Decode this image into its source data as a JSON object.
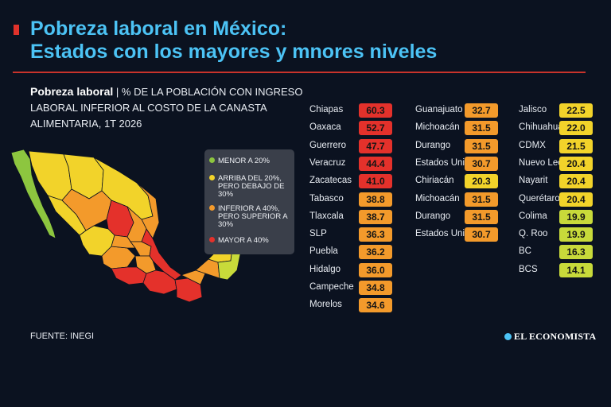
{
  "header": {
    "title_line1": "Pobreza laboral en México:",
    "title_line2": "Estados con los mayores y mnores niveles"
  },
  "subtitle": {
    "bold": "Pobreza laboral",
    "separator": "|",
    "line1_rest": "% DE LA POBLACIÓN CON INGRESO",
    "line2": "LABORAL INFERIOR AL COSTO DE LA CANASTA",
    "line3": "ALIMENTARIA, 1T 2026"
  },
  "legend": {
    "items": [
      {
        "label": "MENOR A 20%",
        "color": "#8dc63f"
      },
      {
        "label": "ARRIBA DEL 20%, PERO DEBAJO DE 30%",
        "color": "#f2d32a"
      },
      {
        "label": "INFERIOR A 40%, PERO SUPERIOR A 30%",
        "color": "#f39a2b"
      },
      {
        "label": "MAYOR A 40%",
        "color": "#e4312b"
      }
    ]
  },
  "colors": {
    "high": "#e4312b",
    "mid_high": "#f39a2b",
    "mid_low": "#f2d32a",
    "low": "#c8da3a",
    "title": "#4cc3f5",
    "background": "#0b1220"
  },
  "chart_data": {
    "type": "table",
    "unit": "% de la población",
    "columns": [
      [
        {
          "state": "Chiapas",
          "value": "60.3"
        },
        {
          "state": "Oaxaca",
          "value": "52.7"
        },
        {
          "state": "Guerrero",
          "value": "47.7"
        },
        {
          "state": "Veracruz",
          "value": "44.4"
        },
        {
          "state": "Zacatecas",
          "value": "41.0"
        },
        {
          "state": "Tabasco",
          "value": "38.8"
        },
        {
          "state": "Tlaxcala",
          "value": "38.7"
        },
        {
          "state": "SLP",
          "value": "36.3"
        },
        {
          "state": "Puebla",
          "value": "36.2"
        },
        {
          "state": "Hidalgo",
          "value": "36.0"
        },
        {
          "state": "Campeche",
          "value": "34.8"
        },
        {
          "state": "Morelos",
          "value": "34.6"
        }
      ],
      [
        {
          "state": "Guanajuato",
          "value": "32.7"
        },
        {
          "state": "Michoacán",
          "value": "31.5"
        },
        {
          "state": "Durango",
          "value": "31.5"
        },
        {
          "state": "Estados Unidos",
          "value": "30.7"
        },
        {
          "state": "Chiriacán",
          "value": "20.3"
        },
        {
          "state": "Michoacán",
          "value": "31.5"
        },
        {
          "state": "Durango",
          "value": "31.5"
        },
        {
          "state": "Estados Unidos",
          "value": "30.7"
        }
      ],
      [
        {
          "state": "Jalisco",
          "value": "22.5"
        },
        {
          "state": "Chihuahua",
          "value": "22.0"
        },
        {
          "state": "CDMX",
          "value": "21.5"
        },
        {
          "state": "Nuevo León",
          "value": "20.4"
        },
        {
          "state": "Nayarit",
          "value": "20.4"
        },
        {
          "state": "Querétaro",
          "value": "20.4"
        },
        {
          "state": "Colima",
          "value": "19.9"
        },
        {
          "state": "Q. Roo",
          "value": "19.9"
        },
        {
          "state": "BC",
          "value": "16.3"
        },
        {
          "state": "BCS",
          "value": "14.1"
        }
      ]
    ]
  },
  "footer": {
    "source": "FUENTE: INEGI",
    "brand": "EL ECONOMISTA"
  }
}
